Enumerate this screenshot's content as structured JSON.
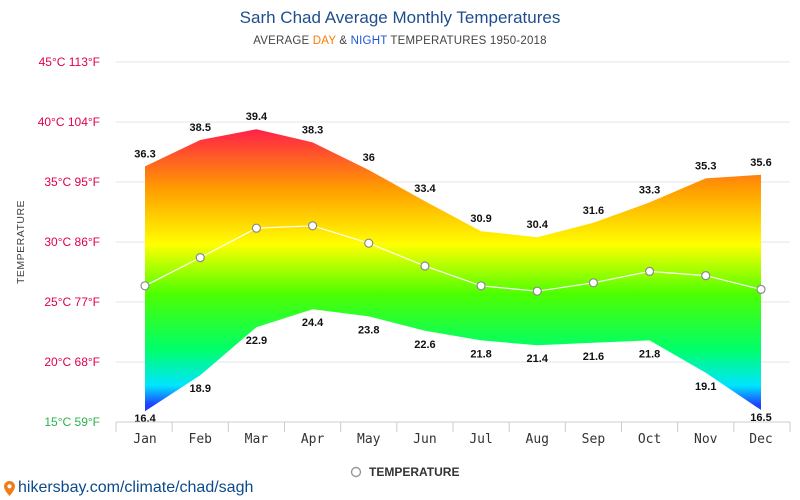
{
  "title": "Sarh Chad Average Monthly Temperatures",
  "subtitle": {
    "prefix": "AVERAGE ",
    "day": "DAY",
    "mid": " & ",
    "night": "NIGHT",
    "suffix": " TEMPERATURES 1950-2018"
  },
  "footer_url": "hikersbay.com/climate/chad/sagh",
  "colors": {
    "day": "#ff7a00",
    "night": "#1f56d6",
    "title": "#1f4e8c",
    "y_label": "#e0004a",
    "y_label_bottom": "#2bb24c"
  },
  "chart_data": {
    "type": "area",
    "ylabel": "TEMPERATURE",
    "ylim": [
      15,
      45
    ],
    "y_ticks": [
      {
        "value": 45,
        "label": "45°C 113°F"
      },
      {
        "value": 40,
        "label": "40°C 104°F"
      },
      {
        "value": 35,
        "label": "35°C 95°F"
      },
      {
        "value": 30,
        "label": "30°C 86°F"
      },
      {
        "value": 25,
        "label": "25°C 77°F"
      },
      {
        "value": 20,
        "label": "20°C 68°F"
      },
      {
        "value": 15,
        "label": "15°C 59°F"
      }
    ],
    "categories": [
      "Jan",
      "Feb",
      "Mar",
      "Apr",
      "May",
      "Jun",
      "Jul",
      "Aug",
      "Sep",
      "Oct",
      "Nov",
      "Dec"
    ],
    "day_values": [
      36.3,
      38.5,
      39.4,
      38.3,
      36,
      33.4,
      30.9,
      30.4,
      31.6,
      33.3,
      35.3,
      35.6
    ],
    "night_values": [
      16.4,
      18.9,
      22.9,
      24.4,
      23.8,
      22.6,
      21.8,
      21.4,
      21.6,
      21.8,
      19.1,
      16.5
    ],
    "day_labels": [
      "36.3",
      "38.5",
      "39.4",
      "38.3",
      "36",
      "33.4",
      "30.9",
      "30.4",
      "31.6",
      "33.3",
      "35.3",
      "35.6"
    ],
    "night_labels": [
      "16.4",
      "18.9",
      "22.9",
      "24.4",
      "23.8",
      "22.6",
      "21.8",
      "21.4",
      "21.6",
      "21.8",
      "19.1",
      "16.5"
    ],
    "series": [
      {
        "name": "TEMPERATURE",
        "values": [
          26.35,
          28.7,
          31.15,
          31.35,
          29.9,
          28,
          26.35,
          25.9,
          26.6,
          27.55,
          27.2,
          26.05
        ]
      }
    ],
    "legend": {
      "placement": "bottom-center"
    },
    "grid": true
  }
}
